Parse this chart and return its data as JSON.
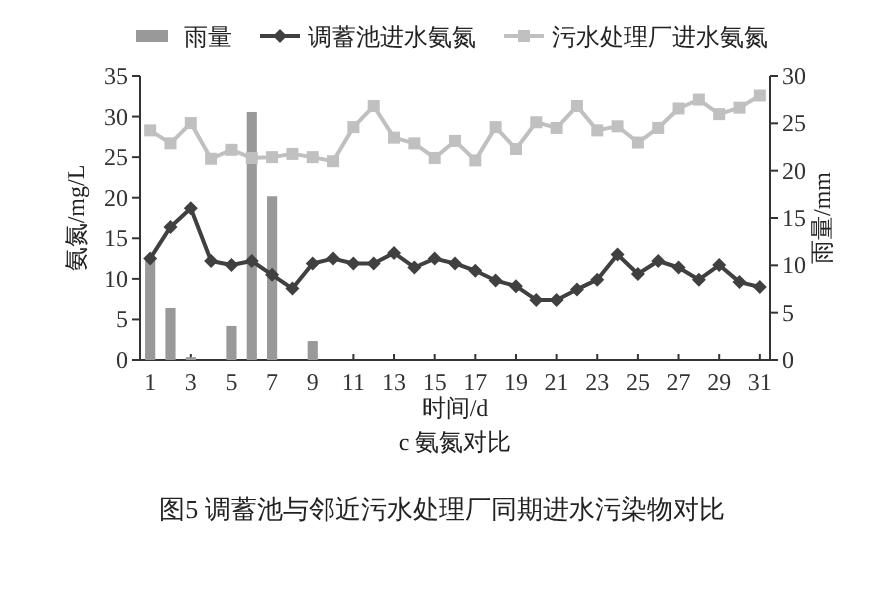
{
  "chart_data": {
    "type": "line",
    "xlabel": "时间/d",
    "ylabel": "氨氮/mg/L",
    "y2label": "雨量/mm",
    "x": [
      1,
      2,
      3,
      4,
      5,
      6,
      7,
      8,
      9,
      10,
      11,
      12,
      13,
      14,
      15,
      16,
      17,
      18,
      19,
      20,
      21,
      22,
      23,
      24,
      25,
      26,
      27,
      28,
      29,
      30,
      31
    ],
    "xlim": [
      0.5,
      31.5
    ],
    "xticks": [
      1,
      3,
      5,
      7,
      9,
      11,
      13,
      15,
      17,
      19,
      21,
      23,
      25,
      27,
      29,
      31
    ],
    "series": [
      {
        "name": "雨量",
        "type": "bar",
        "axis": "y2",
        "color": "#999999",
        "values": [
          10.5,
          5.5,
          0.3,
          null,
          3.6,
          26.2,
          17.3,
          null,
          2.0,
          null,
          null,
          null,
          null,
          null,
          null,
          null,
          null,
          null,
          null,
          null,
          null,
          null,
          null,
          null,
          null,
          null,
          null,
          null,
          null,
          null,
          null
        ]
      },
      {
        "name": "调蓄池进水氨氮",
        "color": "#404040",
        "marker": "diamond",
        "values": [
          12.5,
          16.4,
          18.7,
          12.2,
          11.7,
          12.2,
          10.5,
          8.8,
          11.9,
          12.5,
          11.9,
          11.9,
          13.2,
          11.4,
          12.5,
          11.9,
          11.0,
          9.8,
          9.1,
          7.4,
          7.4,
          8.7,
          9.9,
          13.0,
          10.6,
          12.2,
          11.4,
          9.9,
          11.7,
          9.6,
          9.0
        ]
      },
      {
        "name": "污水处理厂进水氨氮",
        "color": "#c0c0c0",
        "marker": "square",
        "values": [
          28.3,
          26.7,
          29.2,
          24.8,
          25.9,
          24.9,
          25.0,
          25.4,
          25.0,
          24.5,
          28.7,
          31.3,
          27.4,
          26.7,
          24.9,
          27.0,
          24.6,
          28.7,
          26.0,
          29.3,
          28.6,
          31.3,
          28.3,
          28.8,
          26.8,
          28.6,
          31.0,
          32.1,
          30.3,
          31.1,
          32.6
        ]
      }
    ],
    "ylim": [
      0,
      35
    ],
    "yticks": [
      0,
      5,
      10,
      15,
      20,
      25,
      30,
      35
    ],
    "y2lim": [
      0,
      30
    ],
    "y2ticks": [
      0,
      5,
      10,
      15,
      20,
      25,
      30
    ],
    "legend": "top",
    "grid": false,
    "annotations": [
      "c 氨氮对比",
      "图5 调蓄池与邻近污水处理厂同期进水污染物对比"
    ]
  }
}
